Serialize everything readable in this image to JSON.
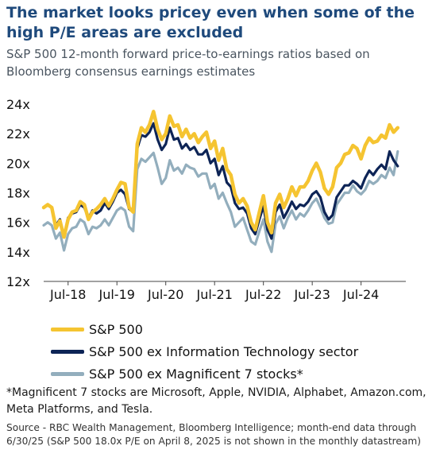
{
  "title": "The market looks pricey even when some of the high P/E areas are excluded",
  "subtitle": "S&P 500 12-month forward price-to-earnings ratios based on Bloomberg consensus earnings estimates",
  "footnote": "*Magnificent 7 stocks are Microsoft, Apple, NVIDIA, Alphabet, Amazon.com, Meta Platforms, and Tesla.",
  "source": "Source - RBC Wealth Management, Bloomberg Intelligence; month-end data through 6/30/25 (S&P 500 18.0x P/E on April 8, 2025 is not shown in the monthly datastream)",
  "colors": {
    "sp500": "#f5c431",
    "ex_tech": "#0d2456",
    "ex_mag7": "#93aebd",
    "title": "#1f4a7c",
    "axis_text": "#111111"
  },
  "chart_data": {
    "type": "line",
    "xlabel": "",
    "ylabel": "",
    "ylim": [
      12,
      24
    ],
    "yticks": [
      12,
      14,
      16,
      18,
      20,
      22,
      24
    ],
    "ytick_labels": [
      "12x",
      "14x",
      "16x",
      "18x",
      "20x",
      "22x",
      "24x"
    ],
    "xticks": [
      "2018-07",
      "2019-07",
      "2020-07",
      "2021-07",
      "2022-07",
      "2023-07",
      "2024-07"
    ],
    "xtick_labels": [
      "Jul-18",
      "Jul-19",
      "Jul-20",
      "Jul-21",
      "Jul-22",
      "Jul-23",
      "Jul-24"
    ],
    "x_range": [
      "2018-01",
      "2025-06"
    ],
    "grid": false,
    "legend_position": "bottom",
    "x": [
      "2018-01",
      "2018-02",
      "2018-03",
      "2018-04",
      "2018-05",
      "2018-06",
      "2018-07",
      "2018-08",
      "2018-09",
      "2018-10",
      "2018-11",
      "2018-12",
      "2019-01",
      "2019-02",
      "2019-03",
      "2019-04",
      "2019-05",
      "2019-06",
      "2019-07",
      "2019-08",
      "2019-09",
      "2019-10",
      "2019-11",
      "2019-12",
      "2020-01",
      "2020-02",
      "2020-03",
      "2020-04",
      "2020-05",
      "2020-06",
      "2020-07",
      "2020-08",
      "2020-09",
      "2020-10",
      "2020-11",
      "2020-12",
      "2021-01",
      "2021-02",
      "2021-03",
      "2021-04",
      "2021-05",
      "2021-06",
      "2021-07",
      "2021-08",
      "2021-09",
      "2021-10",
      "2021-11",
      "2021-12",
      "2022-01",
      "2022-02",
      "2022-03",
      "2022-04",
      "2022-05",
      "2022-06",
      "2022-07",
      "2022-08",
      "2022-09",
      "2022-10",
      "2022-11",
      "2022-12",
      "2023-01",
      "2023-02",
      "2023-03",
      "2023-04",
      "2023-05",
      "2023-06",
      "2023-07",
      "2023-08",
      "2023-09",
      "2023-10",
      "2023-11",
      "2023-12",
      "2024-01",
      "2024-02",
      "2024-03",
      "2024-04",
      "2024-05",
      "2024-06",
      "2024-07",
      "2024-08",
      "2024-09",
      "2024-10",
      "2024-11",
      "2024-12",
      "2025-01",
      "2025-02",
      "2025-03",
      "2025-04",
      "2025-05",
      "2025-06"
    ],
    "series": [
      {
        "name": "S&P 500",
        "color": "#f5c431",
        "values": [
          17.0,
          17.2,
          17.0,
          15.6,
          16.1,
          15.0,
          16.2,
          16.7,
          16.8,
          17.4,
          17.2,
          16.2,
          16.7,
          16.9,
          17.2,
          17.6,
          17.1,
          17.6,
          18.2,
          18.7,
          18.6,
          17.0,
          16.7,
          21.3,
          22.4,
          22.1,
          22.6,
          23.5,
          22.3,
          21.6,
          22.0,
          23.2,
          22.5,
          22.6,
          21.8,
          22.3,
          21.7,
          22.0,
          21.4,
          21.8,
          22.1,
          21.0,
          21.5,
          20.2,
          21.0,
          19.6,
          19.2,
          17.9,
          17.3,
          17.6,
          17.1,
          16.0,
          15.5,
          16.7,
          17.8,
          16.0,
          15.3,
          17.3,
          17.9,
          17.0,
          17.6,
          18.4,
          17.8,
          18.4,
          18.4,
          18.8,
          19.5,
          20.0,
          19.4,
          18.3,
          17.9,
          18.4,
          19.7,
          20.0,
          20.6,
          20.7,
          21.2,
          21.0,
          20.3,
          21.2,
          21.7,
          21.4,
          21.5,
          21.9,
          21.7,
          22.6,
          22.1,
          22.4,
          null,
          null
        ]
      },
      {
        "name": "S&P 500 ex Information Technology sector",
        "color": "#0d2456",
        "values": [
          17.0,
          17.2,
          17.0,
          15.8,
          16.2,
          15.0,
          16.3,
          16.6,
          16.7,
          17.2,
          17.0,
          16.3,
          16.8,
          16.6,
          16.8,
          17.3,
          16.9,
          17.4,
          18.0,
          18.2,
          17.9,
          16.9,
          16.7,
          21.0,
          21.9,
          21.8,
          22.1,
          22.7,
          21.6,
          20.9,
          21.3,
          22.4,
          21.6,
          21.7,
          21.0,
          21.3,
          20.9,
          21.1,
          20.6,
          20.6,
          20.9,
          20.0,
          20.3,
          19.2,
          19.8,
          18.7,
          18.4,
          17.3,
          16.9,
          17.0,
          16.6,
          15.6,
          15.2,
          16.2,
          17.1,
          15.5,
          14.9,
          16.7,
          17.2,
          16.3,
          16.8,
          17.4,
          16.9,
          17.2,
          17.1,
          17.4,
          17.9,
          18.1,
          17.7,
          16.7,
          16.2,
          16.5,
          17.7,
          18.1,
          18.5,
          18.5,
          18.8,
          18.6,
          18.3,
          19.0,
          19.5,
          19.2,
          19.6,
          19.9,
          19.6,
          20.8,
          20.2,
          19.8,
          null,
          null
        ]
      },
      {
        "name": "S&P 500 ex Magnificent 7 stocks*",
        "color": "#93aebd",
        "values": [
          15.8,
          16.0,
          15.8,
          14.9,
          15.3,
          14.1,
          15.2,
          15.6,
          15.7,
          16.2,
          16.0,
          15.2,
          15.7,
          15.6,
          15.8,
          16.2,
          15.8,
          16.3,
          16.8,
          17.0,
          16.8,
          15.7,
          15.4,
          19.6,
          20.3,
          20.1,
          20.4,
          20.7,
          19.7,
          18.6,
          19.0,
          20.2,
          19.5,
          19.7,
          19.3,
          19.9,
          19.7,
          19.6,
          19.1,
          19.3,
          19.3,
          18.3,
          18.6,
          17.6,
          18.0,
          17.3,
          16.7,
          15.7,
          16.0,
          16.3,
          15.5,
          14.7,
          14.5,
          15.4,
          16.2,
          14.7,
          14.0,
          15.9,
          16.4,
          15.6,
          16.3,
          16.8,
          16.2,
          16.6,
          16.4,
          16.8,
          17.3,
          17.6,
          17.0,
          16.3,
          15.9,
          16.0,
          17.2,
          17.6,
          18.0,
          18.0,
          18.5,
          18.1,
          17.9,
          18.2,
          18.8,
          18.6,
          18.8,
          19.2,
          19.0,
          19.7,
          19.2,
          20.8,
          null,
          null
        ]
      }
    ]
  }
}
